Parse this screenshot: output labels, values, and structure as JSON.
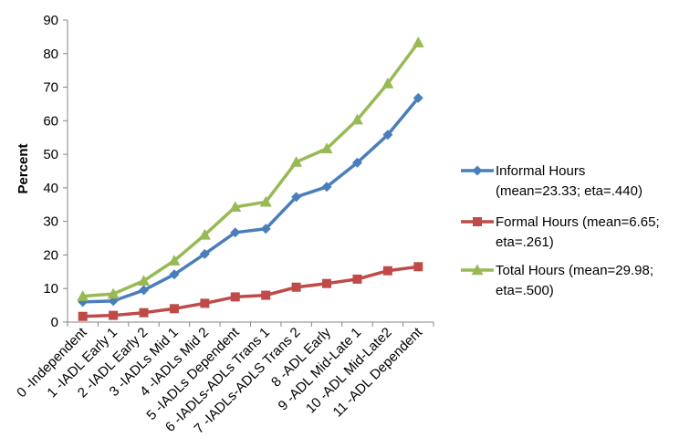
{
  "chart_data": {
    "type": "line",
    "title": "",
    "xlabel": "",
    "ylabel": "Percent",
    "ylim": [
      0,
      90
    ],
    "yticks": [
      0,
      10,
      20,
      30,
      40,
      50,
      60,
      70,
      80,
      90
    ],
    "grid": false,
    "legend_position": "right",
    "categories": [
      "0 -Independent",
      "1 -IADL Early 1",
      "2 -IADL Early 2",
      "3 -IADLs Mid 1",
      "4 -IADLs Mid 2",
      "5 -IADLs Dependent",
      "6 -IADLs-ADLs Trans 1",
      "7 -IADLs-ADLS Trans 2",
      "8 -ADL Early",
      "9 -ADL Mid-Late 1",
      "10 -ADL Mid-Late2",
      "11 -ADL Dependent"
    ],
    "series": [
      {
        "name": "Informal Hours (mean=23.33; eta=.440)",
        "legend_lines": [
          "Informal Hours",
          "(mean=23.33; eta=.440)"
        ],
        "color": "#4a7ebb",
        "marker": "diamond",
        "values": [
          6.0,
          6.3,
          9.5,
          14.2,
          20.3,
          26.7,
          27.8,
          37.3,
          40.3,
          47.5,
          55.8,
          66.8
        ]
      },
      {
        "name": "Formal Hours (mean=6.65; eta=.261)",
        "legend_lines": [
          "Formal Hours  (mean=6.65;",
          "eta=.261)"
        ],
        "color": "#be4b48",
        "marker": "square",
        "values": [
          1.7,
          2.0,
          2.8,
          4.0,
          5.6,
          7.5,
          8.0,
          10.4,
          11.5,
          12.8,
          15.3,
          16.5
        ]
      },
      {
        "name": "Total Hours (mean=29.98; eta=.500)",
        "legend_lines": [
          "Total Hours (mean=29.98;",
          "eta=.500)"
        ],
        "color": "#98b954",
        "marker": "triangle",
        "values": [
          7.7,
          8.4,
          12.3,
          18.3,
          26.0,
          34.3,
          35.8,
          47.7,
          51.7,
          60.3,
          71.1,
          83.3
        ]
      }
    ]
  }
}
